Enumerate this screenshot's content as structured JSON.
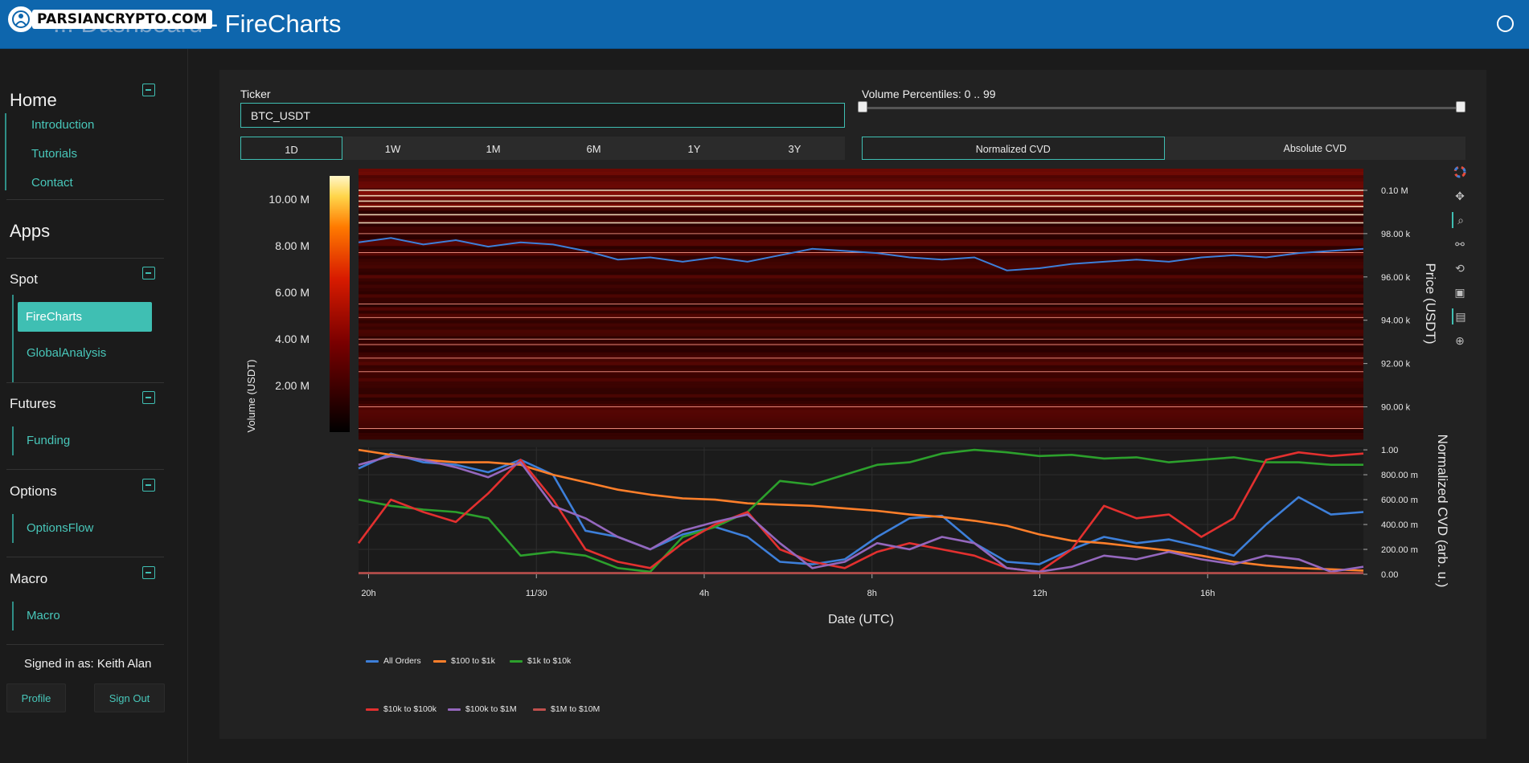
{
  "header": {
    "logo_text": "PARSIANCRYPTO.COM",
    "title_prefix": "... Dashboard",
    "title_sep": " - ",
    "title_page": "FireCharts"
  },
  "sidebar": {
    "home": {
      "title": "Home",
      "items": [
        "Introduction",
        "Tutorials",
        "Contact"
      ]
    },
    "apps_title": "Apps",
    "spot": {
      "title": "Spot",
      "items": [
        "FireCharts",
        "GlobalAnalysis"
      ]
    },
    "futures": {
      "title": "Futures",
      "items": [
        "Funding"
      ]
    },
    "options": {
      "title": "Options",
      "items": [
        "OptionsFlow"
      ]
    },
    "macro": {
      "title": "Macro",
      "items": [
        "Macro"
      ]
    },
    "signed_in": "Signed in as: Keith Alan",
    "profile_label": "Profile",
    "signout_label": "Sign Out"
  },
  "controls": {
    "ticker_label": "Ticker",
    "ticker_value": "BTC_USDT",
    "volume_percentiles_label": "Volume Percentiles: 0 .. 99",
    "volume_percentiles_range": [
      0,
      99
    ],
    "ranges": [
      "1D",
      "1W",
      "1M",
      "6M",
      "1Y",
      "3Y"
    ],
    "active_range": "1D",
    "cvd_modes": [
      "Normalized CVD",
      "Absolute CVD"
    ],
    "active_cvd_mode": "Normalized CVD"
  },
  "chart_data": [
    {
      "type": "heatmap",
      "title": "",
      "colorbar_label": "Volume (USDT)",
      "colorbar_ticks": [
        "2.00 M",
        "4.00 M",
        "6.00 M",
        "8.00 M",
        "10.00 M"
      ],
      "colorbar_range": [
        0,
        11000000
      ],
      "ylabel": "Price (USDT)",
      "y_ticks": [
        "90.00 k",
        "92.00 k",
        "94.00 k",
        "96.00 k",
        "98.00 k",
        "0.10 M"
      ],
      "ylim": [
        88500,
        101000
      ],
      "price_series": {
        "name": "Price",
        "color": "#3d7fd9",
        "y": [
          97600,
          97800,
          97500,
          97700,
          97400,
          97600,
          97500,
          97200,
          96800,
          96900,
          96700,
          96900,
          96700,
          97000,
          97300,
          97200,
          97100,
          96900,
          96800,
          96900,
          96300,
          96400,
          96600,
          96700,
          96800,
          96700,
          96900,
          97000,
          96900,
          97100,
          97200,
          97300
        ]
      }
    },
    {
      "type": "line",
      "xlabel": "Date (UTC)",
      "ylabel": "Normalized CVD (arb. u.)",
      "x_ticks": [
        "20h",
        "11/30",
        "4h",
        "8h",
        "12h",
        "16h"
      ],
      "y_ticks": [
        "0.00",
        "200.00 m",
        "400.00 m",
        "600.00 m",
        "800.00 m",
        "1.00"
      ],
      "ylim": [
        0,
        1.02
      ],
      "legend_position": "bottom",
      "series": [
        {
          "name": "All Orders",
          "color": "#3d7fd9",
          "values": [
            0.85,
            0.97,
            0.9,
            0.88,
            0.82,
            0.92,
            0.8,
            0.35,
            0.3,
            0.2,
            0.32,
            0.38,
            0.3,
            0.1,
            0.08,
            0.12,
            0.3,
            0.45,
            0.47,
            0.25,
            0.1,
            0.08,
            0.2,
            0.3,
            0.25,
            0.28,
            0.22,
            0.15,
            0.4,
            0.62,
            0.48,
            0.5
          ]
        },
        {
          "name": "$100 to $1k",
          "color": "#ff7f2a",
          "values": [
            1.0,
            0.96,
            0.92,
            0.9,
            0.9,
            0.88,
            0.8,
            0.74,
            0.68,
            0.64,
            0.61,
            0.6,
            0.57,
            0.56,
            0.55,
            0.53,
            0.51,
            0.48,
            0.46,
            0.43,
            0.39,
            0.32,
            0.27,
            0.25,
            0.22,
            0.19,
            0.15,
            0.1,
            0.07,
            0.05,
            0.04,
            0.03
          ]
        },
        {
          "name": "$1k to $10k",
          "color": "#2ca02c",
          "values": [
            0.6,
            0.55,
            0.52,
            0.5,
            0.45,
            0.15,
            0.18,
            0.15,
            0.05,
            0.02,
            0.3,
            0.38,
            0.5,
            0.75,
            0.72,
            0.8,
            0.88,
            0.9,
            0.97,
            1.0,
            0.98,
            0.95,
            0.96,
            0.93,
            0.94,
            0.9,
            0.92,
            0.94,
            0.9,
            0.9,
            0.88,
            0.88
          ]
        },
        {
          "name": "$10k to $100k",
          "color": "#e3302f",
          "values": [
            0.25,
            0.6,
            0.5,
            0.42,
            0.65,
            0.92,
            0.6,
            0.2,
            0.1,
            0.05,
            0.25,
            0.4,
            0.5,
            0.2,
            0.1,
            0.05,
            0.18,
            0.25,
            0.2,
            0.15,
            0.05,
            0.02,
            0.2,
            0.55,
            0.45,
            0.48,
            0.3,
            0.45,
            0.92,
            0.98,
            0.95,
            0.97
          ]
        },
        {
          "name": "$100k to $1M",
          "color": "#9467bd",
          "values": [
            0.88,
            0.95,
            0.92,
            0.86,
            0.78,
            0.9,
            0.55,
            0.45,
            0.3,
            0.2,
            0.35,
            0.42,
            0.48,
            0.25,
            0.05,
            0.1,
            0.25,
            0.2,
            0.3,
            0.25,
            0.05,
            0.02,
            0.06,
            0.15,
            0.12,
            0.18,
            0.12,
            0.08,
            0.15,
            0.12,
            0.02,
            0.06
          ]
        },
        {
          "name": "$1M to $10M",
          "color": "#c0504d",
          "values": [
            0.01,
            0.01,
            0.01,
            0.01,
            0.01,
            0.01,
            0.01,
            0.01,
            0.01,
            0.01,
            0.01,
            0.01,
            0.01,
            0.01,
            0.01,
            0.01,
            0.01,
            0.01,
            0.01,
            0.01,
            0.01,
            0.01,
            0.01,
            0.01,
            0.01,
            0.01,
            0.01,
            0.01,
            0.01,
            0.01,
            0.01,
            0.01
          ]
        }
      ]
    }
  ],
  "colors": {
    "accent": "#3fbfb3",
    "header": "#0e66ad"
  }
}
